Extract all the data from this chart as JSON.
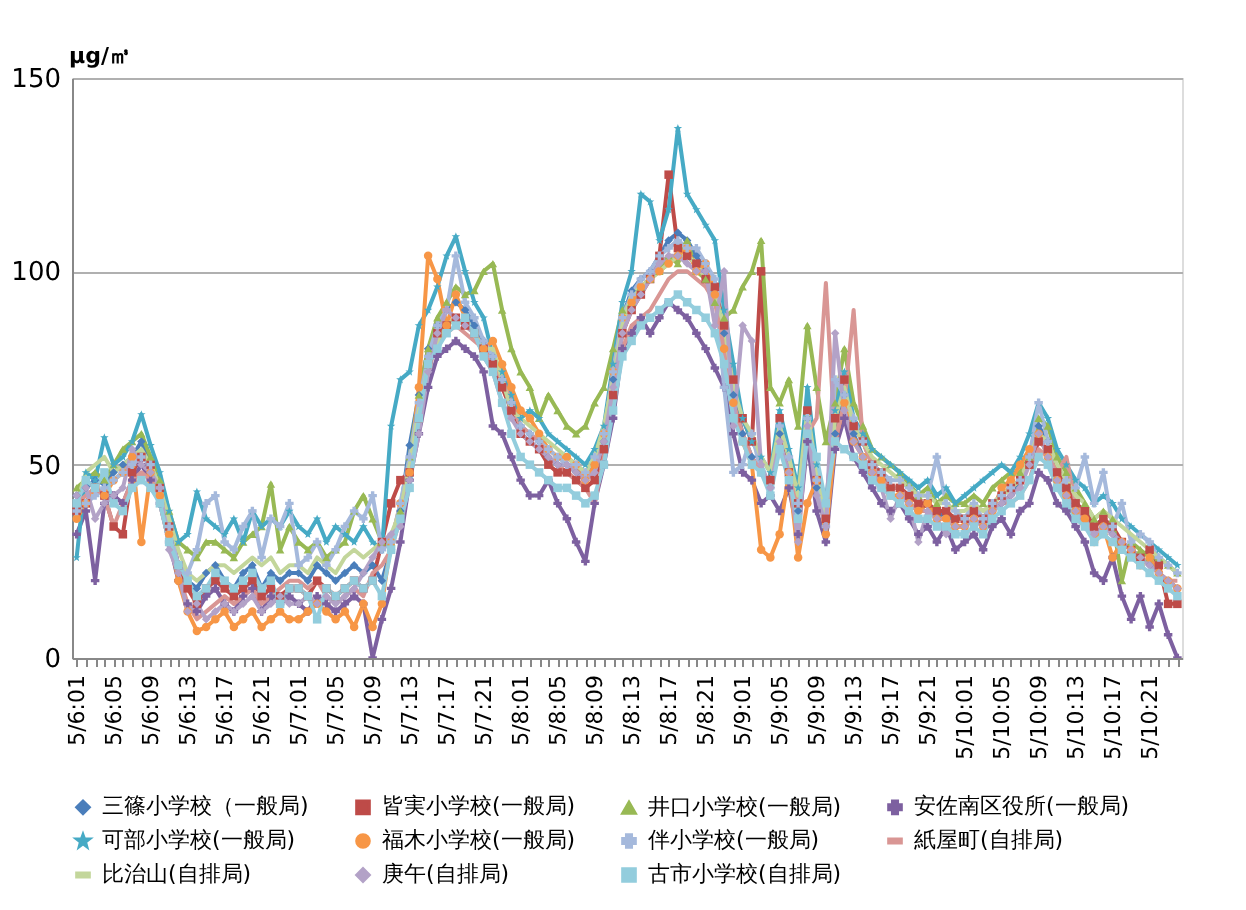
{
  "chart_data": {
    "type": "line",
    "ylabel": "μg/㎥",
    "ylim": [
      0,
      150
    ],
    "yticks": [
      0,
      50,
      100,
      150
    ],
    "grid": "y",
    "legend": "bottom",
    "categories": [
      "5/6:01",
      null,
      null,
      null,
      "5/6:05",
      null,
      null,
      null,
      "5/6:09",
      null,
      null,
      null,
      "5/6:13",
      null,
      null,
      null,
      "5/6:17",
      null,
      null,
      null,
      "5/6:21",
      null,
      null,
      null,
      "5/7:01",
      null,
      null,
      null,
      "5/7:05",
      null,
      null,
      null,
      "5/7:09",
      null,
      null,
      null,
      "5/7:13",
      null,
      null,
      null,
      "5/7:17",
      null,
      null,
      null,
      "5/7:21",
      null,
      null,
      null,
      "5/8:01",
      null,
      null,
      null,
      "5/8:05",
      null,
      null,
      null,
      "5/8:09",
      null,
      null,
      null,
      "5/8:13",
      null,
      null,
      null,
      "5/8:17",
      null,
      null,
      null,
      "5/8:21",
      null,
      null,
      null,
      "5/9:01",
      null,
      null,
      null,
      "5/9:05",
      null,
      null,
      null,
      "5/9:09",
      null,
      null,
      null,
      "5/9:13",
      null,
      null,
      null,
      "5/9:17",
      null,
      null,
      null,
      "5/9:21",
      null,
      null,
      null,
      "5/10:01",
      null,
      null,
      null,
      "5/10:05",
      null,
      null,
      null,
      "5/10:09",
      null,
      null,
      null,
      "5/10:13",
      null,
      null,
      null,
      "5/10:17",
      null,
      null,
      null,
      "5/10:21",
      null,
      null,
      null
    ],
    "series": [
      {
        "name": "三篠小学校（一般局)",
        "color": "#4a7ebb",
        "marker": "diamond",
        "values": [
          42,
          44,
          46,
          45,
          48,
          50,
          52,
          56,
          50,
          44,
          34,
          24,
          20,
          18,
          22,
          24,
          20,
          18,
          22,
          24,
          18,
          22,
          20,
          22,
          22,
          20,
          24,
          22,
          20,
          22,
          24,
          22,
          24,
          20,
          28,
          38,
          55,
          68,
          80,
          86,
          90,
          92,
          90,
          86,
          82,
          78,
          72,
          66,
          60,
          58,
          56,
          52,
          50,
          50,
          48,
          46,
          50,
          56,
          72,
          88,
          95,
          98,
          100,
          104,
          108,
          110,
          108,
          104,
          100,
          95,
          84,
          68,
          58,
          52,
          48,
          44,
          58,
          48,
          38,
          62,
          44,
          34,
          58,
          68,
          58,
          52,
          48,
          46,
          44,
          44,
          40,
          38,
          40,
          36,
          38,
          34,
          34,
          36,
          34,
          38,
          40,
          42,
          46,
          52,
          60,
          56,
          48,
          44,
          40,
          36,
          34,
          36,
          32,
          30,
          28,
          26,
          24,
          22,
          20,
          18
        ]
      },
      {
        "name": "皆実小学校(一般局)",
        "color": "#be4b48",
        "marker": "square",
        "values": [
          38,
          40,
          44,
          42,
          34,
          32,
          48,
          52,
          50,
          44,
          34,
          24,
          18,
          14,
          18,
          20,
          18,
          16,
          18,
          20,
          16,
          18,
          16,
          18,
          18,
          16,
          20,
          18,
          16,
          18,
          20,
          18,
          20,
          30,
          40,
          46,
          48,
          62,
          76,
          84,
          86,
          88,
          86,
          84,
          80,
          76,
          70,
          64,
          58,
          56,
          54,
          50,
          48,
          48,
          46,
          44,
          46,
          54,
          68,
          84,
          90,
          94,
          98,
          104,
          125,
          106,
          104,
          102,
          98,
          96,
          86,
          72,
          62,
          56,
          100,
          46,
          62,
          48,
          40,
          64,
          46,
          36,
          62,
          72,
          60,
          56,
          50,
          48,
          44,
          44,
          42,
          40,
          40,
          38,
          38,
          36,
          36,
          38,
          36,
          40,
          42,
          44,
          46,
          50,
          56,
          54,
          48,
          44,
          40,
          38,
          34,
          36,
          34,
          30,
          28,
          26,
          28,
          24,
          14,
          14
        ]
      },
      {
        "name": "井口小学校(一般局)",
        "color": "#98b954",
        "marker": "triangle",
        "values": [
          44,
          46,
          48,
          46,
          50,
          54,
          56,
          58,
          52,
          46,
          38,
          30,
          28,
          26,
          30,
          30,
          28,
          26,
          30,
          32,
          34,
          45,
          28,
          34,
          30,
          28,
          30,
          26,
          28,
          30,
          38,
          42,
          36,
          30,
          30,
          38,
          52,
          68,
          80,
          88,
          92,
          96,
          94,
          95,
          100,
          102,
          90,
          80,
          74,
          70,
          62,
          68,
          64,
          60,
          58,
          60,
          66,
          70,
          80,
          90,
          92,
          96,
          98,
          100,
          104,
          102,
          108,
          100,
          98,
          92,
          88,
          90,
          96,
          100,
          108,
          70,
          66,
          72,
          60,
          86,
          70,
          56,
          66,
          80,
          66,
          60,
          54,
          52,
          50,
          48,
          45,
          42,
          44,
          40,
          42,
          40,
          40,
          42,
          40,
          44,
          46,
          48,
          48,
          52,
          62,
          60,
          52,
          48,
          44,
          40,
          36,
          38,
          36,
          20,
          30,
          28,
          26,
          26,
          24,
          22
        ]
      },
      {
        "name": "安佐南区役所(一般局)",
        "color": "#7d60a0",
        "marker": "cross",
        "values": [
          32,
          38,
          20,
          40,
          42,
          40,
          46,
          50,
          46,
          40,
          30,
          20,
          14,
          12,
          16,
          18,
          14,
          12,
          16,
          18,
          12,
          16,
          14,
          16,
          14,
          12,
          16,
          14,
          12,
          14,
          16,
          14,
          0,
          10,
          18,
          30,
          46,
          58,
          70,
          78,
          80,
          82,
          80,
          78,
          74,
          60,
          58,
          52,
          46,
          42,
          42,
          46,
          40,
          36,
          30,
          25,
          40,
          50,
          62,
          80,
          84,
          88,
          84,
          88,
          92,
          90,
          88,
          84,
          80,
          75,
          70,
          58,
          48,
          46,
          40,
          42,
          38,
          44,
          32,
          56,
          38,
          30,
          54,
          62,
          52,
          48,
          44,
          40,
          38,
          40,
          36,
          32,
          34,
          30,
          34,
          28,
          30,
          32,
          28,
          34,
          36,
          32,
          38,
          40,
          48,
          46,
          40,
          38,
          34,
          30,
          22,
          20,
          26,
          16,
          10,
          16,
          8,
          14,
          6,
          0
        ]
      },
      {
        "name": "可部小学校(一般局)",
        "color": "#46aac5",
        "marker": "star",
        "values": [
          26,
          48,
          46,
          57,
          50,
          52,
          56,
          63,
          55,
          48,
          38,
          30,
          32,
          43,
          36,
          34,
          32,
          36,
          30,
          38,
          34,
          36,
          34,
          38,
          34,
          32,
          36,
          30,
          34,
          32,
          30,
          34,
          30,
          28,
          60,
          72,
          74,
          86,
          90,
          96,
          104,
          109,
          100,
          92,
          88,
          78,
          74,
          68,
          62,
          64,
          62,
          58,
          56,
          54,
          52,
          50,
          54,
          60,
          76,
          92,
          100,
          120,
          118,
          108,
          116,
          137,
          120,
          116,
          112,
          108,
          90,
          76,
          62,
          56,
          52,
          48,
          64,
          54,
          44,
          70,
          50,
          40,
          64,
          74,
          62,
          58,
          54,
          52,
          50,
          48,
          46,
          44,
          46,
          42,
          44,
          40,
          42,
          44,
          46,
          48,
          50,
          48,
          52,
          58,
          66,
          62,
          54,
          50,
          46,
          44,
          40,
          42,
          40,
          36,
          34,
          32,
          30,
          28,
          26,
          24
        ]
      },
      {
        "name": "福木小学校(一般局)",
        "color": "#f79646",
        "marker": "circle",
        "values": [
          36,
          40,
          44,
          42,
          46,
          48,
          52,
          30,
          48,
          42,
          32,
          20,
          12,
          7,
          8,
          10,
          12,
          8,
          10,
          12,
          8,
          10,
          12,
          10,
          10,
          12,
          14,
          12,
          10,
          12,
          8,
          14,
          8,
          14,
          30,
          40,
          48,
          70,
          104,
          98,
          86,
          94,
          88,
          84,
          80,
          82,
          76,
          70,
          64,
          62,
          58,
          54,
          52,
          52,
          50,
          46,
          50,
          58,
          74,
          88,
          92,
          96,
          98,
          100,
          102,
          104,
          106,
          100,
          102,
          94,
          80,
          66,
          56,
          50,
          28,
          26,
          32,
          48,
          26,
          40,
          46,
          32,
          56,
          66,
          56,
          52,
          48,
          46,
          42,
          42,
          40,
          38,
          40,
          36,
          36,
          34,
          34,
          36,
          34,
          38,
          44,
          46,
          50,
          54,
          58,
          52,
          46,
          42,
          38,
          36,
          30,
          34,
          26,
          30,
          28,
          24,
          26,
          22,
          20,
          18
        ]
      },
      {
        "name": "伴小学校(一般局)",
        "color": "#a5b9dc",
        "marker": "cross",
        "values": [
          38,
          40,
          42,
          44,
          46,
          48,
          50,
          52,
          50,
          44,
          34,
          24,
          22,
          28,
          40,
          42,
          30,
          28,
          34,
          38,
          26,
          36,
          34,
          40,
          24,
          26,
          30,
          24,
          28,
          34,
          38,
          36,
          42,
          28,
          30,
          40,
          52,
          66,
          78,
          86,
          90,
          104,
          92,
          88,
          82,
          78,
          72,
          66,
          60,
          58,
          56,
          54,
          52,
          50,
          50,
          48,
          52,
          58,
          74,
          88,
          94,
          98,
          100,
          104,
          106,
          108,
          106,
          106,
          102,
          98,
          70,
          48,
          50,
          58,
          48,
          44,
          60,
          52,
          40,
          62,
          46,
          34,
          72,
          68,
          62,
          56,
          50,
          48,
          46,
          46,
          44,
          42,
          42,
          52,
          40,
          38,
          36,
          40,
          36,
          40,
          42,
          44,
          46,
          52,
          66,
          56,
          44,
          46,
          44,
          52,
          40,
          48,
          34,
          40,
          30,
          32,
          30,
          26,
          24,
          22
        ]
      },
      {
        "name": "紙屋町(自排局)",
        "color": "#d99694",
        "marker": "none",
        "values": [
          40,
          42,
          44,
          42,
          34,
          40,
          46,
          48,
          46,
          40,
          30,
          22,
          14,
          10,
          12,
          14,
          16,
          14,
          16,
          18,
          14,
          16,
          18,
          20,
          20,
          18,
          20,
          16,
          14,
          16,
          18,
          16,
          22,
          24,
          28,
          36,
          46,
          62,
          74,
          82,
          84,
          86,
          84,
          82,
          80,
          76,
          72,
          66,
          60,
          58,
          56,
          52,
          50,
          48,
          46,
          44,
          40,
          52,
          66,
          80,
          86,
          88,
          90,
          94,
          98,
          100,
          100,
          98,
          96,
          92,
          80,
          66,
          58,
          52,
          48,
          44,
          54,
          48,
          40,
          58,
          62,
          97,
          56,
          66,
          90,
          56,
          50,
          46,
          44,
          44,
          40,
          38,
          38,
          36,
          36,
          34,
          34,
          36,
          34,
          38,
          40,
          40,
          42,
          46,
          54,
          52,
          48,
          52,
          40,
          36,
          32,
          34,
          32,
          30,
          28,
          26,
          24,
          22,
          20,
          20
        ]
      },
      {
        "name": "比治山(自排局)",
        "color": "#c3d69b",
        "marker": "none",
        "values": [
          40,
          48,
          50,
          52,
          48,
          50,
          52,
          54,
          50,
          44,
          36,
          28,
          22,
          20,
          22,
          24,
          24,
          22,
          24,
          26,
          24,
          26,
          22,
          24,
          24,
          22,
          26,
          24,
          22,
          26,
          28,
          26,
          28,
          30,
          32,
          38,
          50,
          64,
          76,
          82,
          86,
          88,
          86,
          84,
          80,
          80,
          72,
          64,
          62,
          60,
          58,
          56,
          54,
          52,
          50,
          48,
          52,
          60,
          72,
          86,
          94,
          96,
          98,
          100,
          102,
          104,
          104,
          102,
          98,
          94,
          86,
          70,
          62,
          58,
          52,
          48,
          60,
          52,
          42,
          64,
          48,
          38,
          62,
          70,
          60,
          56,
          52,
          50,
          48,
          46,
          44,
          42,
          42,
          40,
          40,
          38,
          38,
          40,
          38,
          40,
          42,
          44,
          46,
          52,
          58,
          56,
          50,
          46,
          42,
          40,
          36,
          38,
          36,
          34,
          32,
          30,
          28,
          26,
          24,
          22
        ]
      },
      {
        "name": "庚午(自排局)",
        "color": "#b3a2c7",
        "marker": "diamond",
        "values": [
          42,
          44,
          36,
          40,
          42,
          44,
          54,
          50,
          48,
          44,
          28,
          22,
          12,
          14,
          10,
          12,
          14,
          12,
          14,
          16,
          12,
          14,
          16,
          14,
          14,
          16,
          14,
          16,
          14,
          16,
          18,
          22,
          26,
          30,
          32,
          34,
          46,
          58,
          74,
          84,
          90,
          88,
          86,
          84,
          78,
          74,
          66,
          62,
          58,
          56,
          54,
          52,
          50,
          50,
          48,
          46,
          48,
          56,
          70,
          84,
          90,
          94,
          98,
          102,
          104,
          104,
          102,
          100,
          100,
          86,
          100,
          60,
          86,
          82,
          50,
          44,
          56,
          48,
          30,
          60,
          42,
          34,
          84,
          64,
          56,
          52,
          48,
          44,
          36,
          42,
          40,
          30,
          38,
          36,
          32,
          34,
          34,
          36,
          34,
          38,
          40,
          42,
          44,
          50,
          58,
          52,
          46,
          42,
          38,
          34,
          32,
          34,
          32,
          30,
          28,
          26,
          24,
          22,
          20,
          18
        ]
      },
      {
        "name": "古市小学校(自排局)",
        "color": "#93cddd",
        "marker": "square",
        "values": [
          40,
          46,
          44,
          48,
          40,
          38,
          44,
          46,
          44,
          40,
          30,
          24,
          20,
          16,
          18,
          22,
          20,
          18,
          20,
          22,
          18,
          20,
          14,
          18,
          18,
          16,
          10,
          18,
          16,
          18,
          20,
          18,
          20,
          16,
          28,
          36,
          44,
          62,
          76,
          80,
          84,
          86,
          88,
          84,
          78,
          74,
          66,
          58,
          52,
          50,
          48,
          46,
          44,
          44,
          42,
          40,
          42,
          50,
          64,
          78,
          82,
          86,
          88,
          90,
          92,
          94,
          92,
          90,
          88,
          84,
          76,
          62,
          56,
          50,
          48,
          42,
          54,
          46,
          36,
          58,
          52,
          40,
          56,
          54,
          52,
          50,
          46,
          44,
          42,
          40,
          38,
          36,
          36,
          34,
          34,
          32,
          32,
          34,
          32,
          36,
          38,
          40,
          42,
          46,
          52,
          50,
          44,
          40,
          36,
          34,
          30,
          32,
          30,
          28,
          26,
          24,
          22,
          20,
          18,
          16
        ]
      }
    ]
  }
}
